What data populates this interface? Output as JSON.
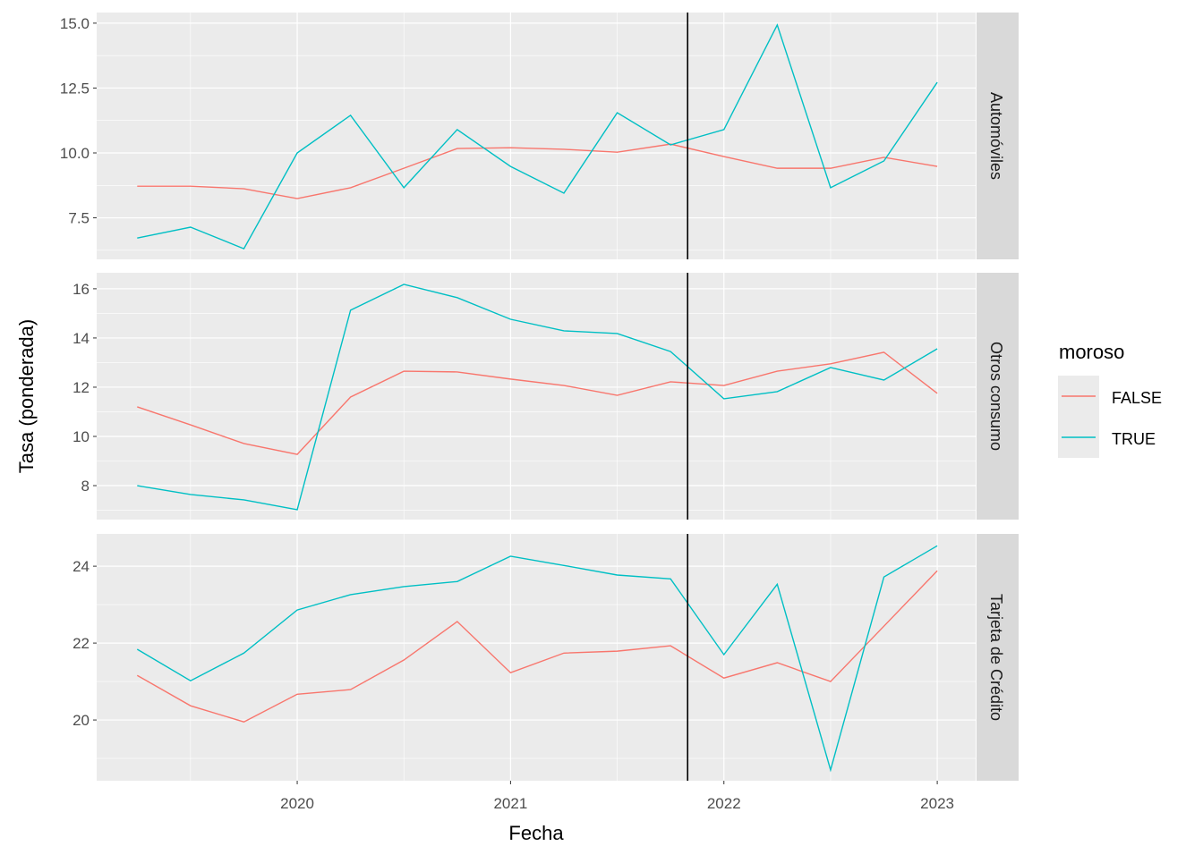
{
  "chart_data": {
    "type": "line",
    "xlabel": "Fecha",
    "ylabel": "Tasa (ponderada)",
    "x": [
      2019.25,
      2019.5,
      2019.75,
      2020.0,
      2020.25,
      2020.5,
      2020.75,
      2021.0,
      2021.25,
      2021.5,
      2021.75,
      2022.0,
      2022.25,
      2022.5,
      2022.75,
      2023.0
    ],
    "xlim": [
      2019.06,
      2023.18
    ],
    "x_ticks": [
      2020,
      2021,
      2022,
      2023
    ],
    "x_tick_labels": [
      "2020",
      "2021",
      "2022",
      "2023"
    ],
    "vline": 2021.83,
    "grid": true,
    "legend": {
      "title": "moroso",
      "position": "right",
      "entries": [
        {
          "label": "FALSE",
          "color": "#F8766D"
        },
        {
          "label": "TRUE",
          "color": "#00BFC4"
        }
      ]
    },
    "facets": [
      {
        "label": "Automóviles",
        "ylim": [
          5.9,
          15.41
        ],
        "y_ticks": [
          7.5,
          10.0,
          12.5,
          15.0
        ],
        "y_tick_labels": [
          "7.5",
          "10.0",
          "12.5",
          "15.0"
        ],
        "series": [
          {
            "name": "FALSE",
            "values": [
              8.72,
              8.72,
              8.62,
              8.24,
              8.66,
              9.41,
              10.17,
              10.2,
              10.14,
              10.03,
              10.34,
              9.86,
              9.41,
              9.41,
              9.83,
              9.48
            ]
          },
          {
            "name": "TRUE",
            "values": [
              6.72,
              7.14,
              6.31,
              10.0,
              11.45,
              8.66,
              10.9,
              9.48,
              8.45,
              11.55,
              10.31,
              10.9,
              14.93,
              8.66,
              9.69,
              12.72
            ]
          }
        ]
      },
      {
        "label": "Otros consumo",
        "ylim": [
          6.62,
          16.65
        ],
        "y_ticks": [
          8,
          10,
          12,
          14,
          16
        ],
        "y_tick_labels": [
          "8",
          "10",
          "12",
          "14",
          "16"
        ],
        "series": [
          {
            "name": "FALSE",
            "values": [
              11.2,
              10.47,
              9.71,
              9.27,
              11.6,
              12.65,
              12.62,
              12.33,
              12.07,
              11.67,
              12.22,
              12.07,
              12.65,
              12.95,
              13.42,
              11.75
            ]
          },
          {
            "name": "TRUE",
            "values": [
              8.0,
              7.64,
              7.42,
              7.02,
              15.13,
              16.18,
              15.64,
              14.76,
              14.29,
              14.18,
              13.45,
              11.53,
              11.82,
              12.8,
              12.29,
              13.56
            ]
          }
        ]
      },
      {
        "label": "Tarjeta de Crédito",
        "ylim": [
          18.42,
          24.84
        ],
        "y_ticks": [
          20,
          22,
          24
        ],
        "y_tick_labels": [
          "20",
          "22",
          "24"
        ],
        "series": [
          {
            "name": "FALSE",
            "values": [
              21.16,
              20.37,
              19.95,
              20.67,
              20.79,
              21.56,
              22.56,
              21.23,
              21.74,
              21.79,
              21.93,
              21.09,
              21.49,
              21.0,
              22.44,
              23.88
            ]
          },
          {
            "name": "TRUE",
            "values": [
              21.84,
              21.02,
              21.74,
              22.86,
              23.26,
              23.47,
              23.6,
              24.26,
              24.02,
              23.77,
              23.67,
              21.7,
              23.53,
              18.7,
              23.72,
              24.53
            ]
          }
        ]
      }
    ]
  }
}
